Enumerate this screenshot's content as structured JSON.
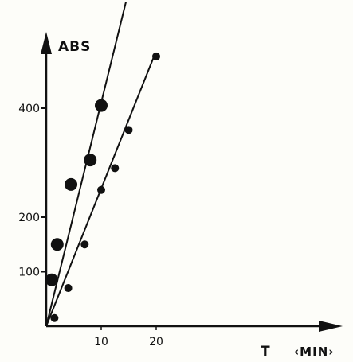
{
  "chart_data": {
    "type": "scatter",
    "ylabel": "ABS",
    "xlabel_main": "T",
    "xlabel_unit": "‹MIN›",
    "x_ticks": [
      {
        "value": 10,
        "label": "10"
      },
      {
        "value": 20,
        "label": "20"
      }
    ],
    "y_ticks": [
      {
        "value": 100,
        "label": "100"
      },
      {
        "value": 200,
        "label": "200"
      },
      {
        "value": 400,
        "label": "400"
      }
    ],
    "xlim": [
      0,
      40
    ],
    "ylim": [
      0,
      580
    ],
    "series": [
      {
        "marker": "large",
        "points": [
          {
            "x": 1,
            "y": 85
          },
          {
            "x": 2,
            "y": 150
          },
          {
            "x": 4.5,
            "y": 260
          },
          {
            "x": 8,
            "y": 305
          },
          {
            "x": 10,
            "y": 405
          }
        ],
        "fit": {
          "x": [
            0,
            14.5
          ],
          "y": [
            0,
            595
          ]
        }
      },
      {
        "marker": "small",
        "points": [
          {
            "x": 1.5,
            "y": 15
          },
          {
            "x": 4,
            "y": 70
          },
          {
            "x": 7,
            "y": 150
          },
          {
            "x": 10,
            "y": 250
          },
          {
            "x": 12.5,
            "y": 290
          },
          {
            "x": 15,
            "y": 360
          },
          {
            "x": 20,
            "y": 495
          }
        ],
        "fit": {
          "x": [
            0,
            19.8
          ],
          "y": [
            0,
            500
          ]
        }
      }
    ]
  }
}
